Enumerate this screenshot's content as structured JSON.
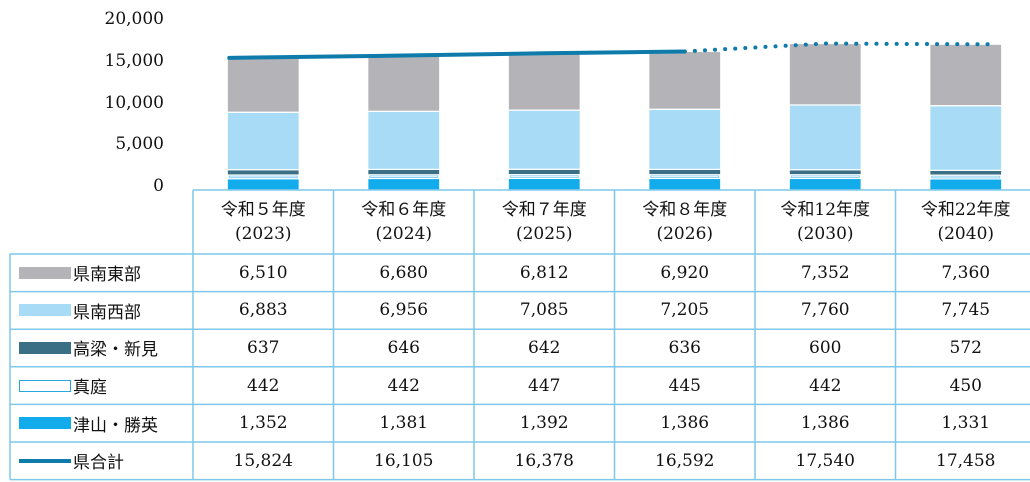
{
  "chart_data": {
    "type": "bar",
    "stacked": true,
    "ylim": [
      0,
      20000
    ],
    "yticks": [
      "20,000",
      "15,000",
      "10,000",
      "5,000",
      "0"
    ],
    "ytick_values": [
      20000,
      15000,
      10000,
      5000,
      0
    ],
    "categories": [
      {
        "line1": "令和５年度",
        "line2": "(2023)"
      },
      {
        "line1": "令和６年度",
        "line2": "(2024)"
      },
      {
        "line1": "令和７年度",
        "line2": "(2025)"
      },
      {
        "line1": "令和８年度",
        "line2": "(2026)"
      },
      {
        "line1": "令和12年度",
        "line2": "(2030)"
      },
      {
        "line1": "令和22年度",
        "line2": "(2040)"
      }
    ],
    "series": [
      {
        "name": "県南東部",
        "color": "#b4b4b8",
        "values": [
          6510,
          6680,
          6812,
          6920,
          7352,
          7360
        ],
        "labels": [
          "6,510",
          "6,680",
          "6,812",
          "6,920",
          "7,352",
          "7,360"
        ]
      },
      {
        "name": "県南西部",
        "color": "#a8dcf6",
        "values": [
          6883,
          6956,
          7085,
          7205,
          7760,
          7745
        ],
        "labels": [
          "6,883",
          "6,956",
          "7,085",
          "7,205",
          "7,760",
          "7,745"
        ]
      },
      {
        "name": "高梁・新見",
        "color": "#3b6f86",
        "values": [
          637,
          646,
          642,
          636,
          600,
          572
        ],
        "labels": [
          "637",
          "646",
          "642",
          "636",
          "600",
          "572"
        ]
      },
      {
        "name": "真庭",
        "color": "#ffffff",
        "values": [
          442,
          442,
          447,
          445,
          442,
          450
        ],
        "labels": [
          "442",
          "442",
          "447",
          "445",
          "442",
          "450"
        ]
      },
      {
        "name": "津山・勝英",
        "color": "#12acec",
        "values": [
          1352,
          1381,
          1392,
          1386,
          1386,
          1331
        ],
        "labels": [
          "1,352",
          "1,381",
          "1,392",
          "1,386",
          "1,386",
          "1,331"
        ]
      }
    ],
    "total": {
      "name": "県合計",
      "color": "#0e7bab",
      "values": [
        15824,
        16105,
        16378,
        16592,
        17540,
        17458
      ],
      "labels": [
        "15,824",
        "16,105",
        "16,378",
        "16,592",
        "17,540",
        "17,458"
      ],
      "projected_from_index": 3
    }
  }
}
